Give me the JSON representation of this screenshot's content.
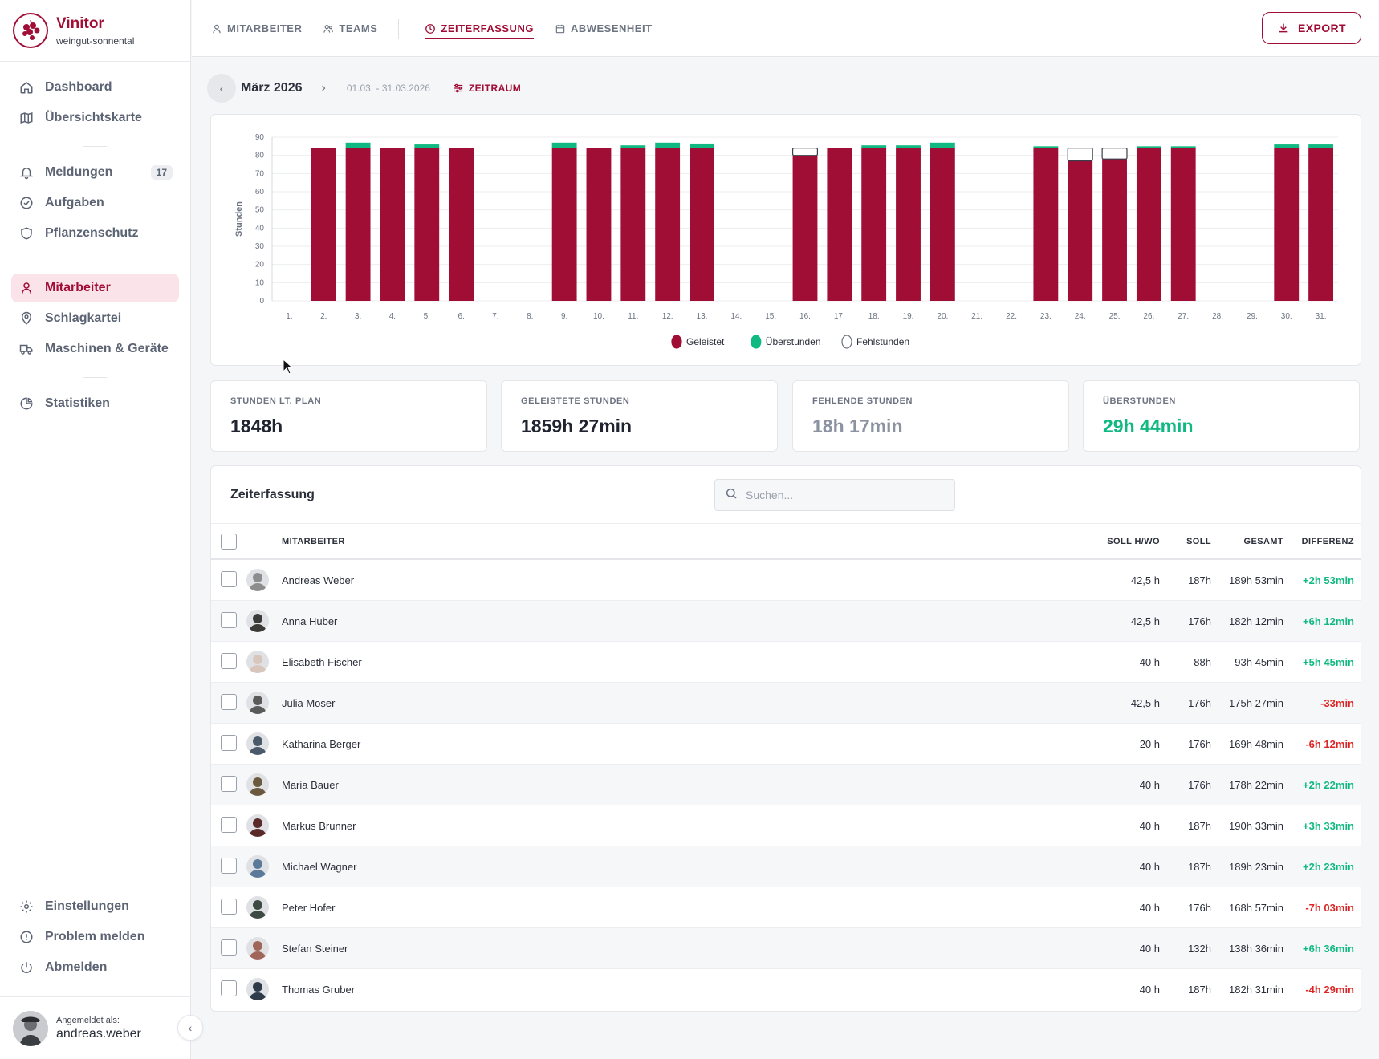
{
  "brand": {
    "name": "Vinitor",
    "subtitle": "weingut-sonnental"
  },
  "nav": {
    "group1": [
      {
        "id": "dashboard",
        "label": "Dashboard",
        "icon": "home-icon"
      },
      {
        "id": "uebersichtskarte",
        "label": "Übersichtskarte",
        "icon": "map-icon"
      }
    ],
    "group2": [
      {
        "id": "meldungen",
        "label": "Meldungen",
        "icon": "bell-icon",
        "badge": "17"
      },
      {
        "id": "aufgaben",
        "label": "Aufgaben",
        "icon": "check-circle-icon"
      },
      {
        "id": "pflanzenschutz",
        "label": "Pflanzenschutz",
        "icon": "shield-icon"
      }
    ],
    "group3": [
      {
        "id": "mitarbeiter",
        "label": "Mitarbeiter",
        "icon": "user-icon",
        "active": true
      },
      {
        "id": "schlagkartei",
        "label": "Schlagkartei",
        "icon": "map-pin-icon"
      },
      {
        "id": "maschinen",
        "label": "Maschinen & Geräte",
        "icon": "truck-icon"
      }
    ],
    "group4": [
      {
        "id": "statistiken",
        "label": "Statistiken",
        "icon": "pie-chart-icon"
      }
    ],
    "bottom": [
      {
        "id": "einstellungen",
        "label": "Einstellungen",
        "icon": "gear-icon"
      },
      {
        "id": "problem",
        "label": "Problem melden",
        "icon": "alert-circle-icon"
      },
      {
        "id": "abmelden",
        "label": "Abmelden",
        "icon": "power-icon"
      }
    ]
  },
  "user": {
    "caption": "Angemeldet als:",
    "name": "andreas.weber"
  },
  "tabs": [
    {
      "id": "mitarbeiter",
      "label": "MITARBEITER",
      "icon": "user-icon"
    },
    {
      "id": "teams",
      "label": "TEAMS",
      "icon": "users-icon"
    },
    {
      "id": "zeiterfassung",
      "label": "ZEITERFASSUNG",
      "icon": "clock-icon",
      "active": true
    },
    {
      "id": "abwesenheit",
      "label": "ABWESENHEIT",
      "icon": "calendar-icon"
    }
  ],
  "export_label": "EXPORT",
  "period": {
    "month": "März 2026",
    "range": "01.03. - 31.03.2026",
    "filter_label": "ZEITRAUM"
  },
  "chart_data": {
    "type": "bar",
    "stacked": true,
    "ylabel": "Stunden",
    "ylim": [
      0,
      90
    ],
    "yticks": [
      0,
      10,
      20,
      30,
      40,
      50,
      60,
      70,
      80,
      90
    ],
    "grid": true,
    "legend_position": "bottom-center",
    "categories": [
      "1.",
      "2.",
      "3.",
      "4.",
      "5.",
      "6.",
      "7.",
      "8.",
      "9.",
      "10.",
      "11.",
      "12.",
      "13.",
      "14.",
      "15.",
      "16.",
      "17.",
      "18.",
      "19.",
      "20.",
      "21.",
      "22.",
      "23.",
      "24.",
      "25.",
      "26.",
      "27.",
      "28.",
      "29.",
      "30.",
      "31."
    ],
    "series": [
      {
        "name": "Geleistet",
        "color": "#a00d35",
        "values": [
          0,
          84,
          84,
          84,
          84,
          84,
          0,
          0,
          84,
          84,
          84,
          84,
          84,
          0,
          0,
          80,
          84,
          84,
          84,
          84,
          0,
          0,
          84,
          77,
          78,
          84,
          84,
          0,
          0,
          84,
          84
        ]
      },
      {
        "name": "Überstunden",
        "color": "#10b981",
        "values": [
          0,
          0,
          3,
          0,
          2,
          0,
          0,
          0,
          3,
          0,
          1.5,
          3,
          2.5,
          0,
          0,
          0,
          0,
          1.5,
          1.5,
          3,
          0,
          0,
          1,
          0,
          0,
          1,
          1,
          0,
          0,
          2,
          2
        ]
      },
      {
        "name": "Fehlstunden",
        "color": "#ffffff",
        "values": [
          0,
          0,
          0,
          0,
          0,
          0,
          0,
          0,
          0,
          0,
          0,
          0,
          0,
          0,
          0,
          4,
          0,
          0,
          0,
          0,
          0,
          0,
          0,
          7,
          6,
          0,
          0,
          0,
          0,
          0,
          0
        ]
      }
    ]
  },
  "stats": [
    {
      "id": "plan",
      "label": "STUNDEN LT. PLAN",
      "value": "1848h",
      "color": "#1f2430"
    },
    {
      "id": "geleistet",
      "label": "GELEISTETE STUNDEN",
      "value": "1859h 27min",
      "color": "#1f2430"
    },
    {
      "id": "fehlend",
      "label": "FEHLENDE STUNDEN",
      "value": "18h 17min",
      "color": "#8b93a1"
    },
    {
      "id": "ueber",
      "label": "ÜBERSTUNDEN",
      "value": "29h 44min",
      "color": "#10b981"
    }
  ],
  "table": {
    "title": "Zeiterfassung",
    "search_placeholder": "Suchen...",
    "columns": {
      "name": "MITARBEITER",
      "soll_h": "SOLL H/WO",
      "soll": "SOLL",
      "gesamt": "GESAMT",
      "diff": "DIFFERENZ"
    },
    "rows": [
      {
        "name": "Andreas Weber",
        "soll_h": "42,5 h",
        "soll": "187h",
        "gesamt": "189h 53min",
        "diff": "+2h 53min",
        "positive": true,
        "avatar": "#8d8d8d"
      },
      {
        "name": "Anna Huber",
        "soll_h": "42,5 h",
        "soll": "176h",
        "gesamt": "182h 12min",
        "diff": "+6h 12min",
        "positive": true,
        "avatar": "#3b3a36"
      },
      {
        "name": "Elisabeth Fischer",
        "soll_h": "40 h",
        "soll": "88h",
        "gesamt": "93h 45min",
        "diff": "+5h 45min",
        "positive": true,
        "avatar": "#d8c6bd"
      },
      {
        "name": "Julia Moser",
        "soll_h": "42,5 h",
        "soll": "176h",
        "gesamt": "175h 27min",
        "diff": "-33min",
        "positive": false,
        "avatar": "#5a5a5a"
      },
      {
        "name": "Katharina Berger",
        "soll_h": "20 h",
        "soll": "176h",
        "gesamt": "169h 48min",
        "diff": "-6h 12min",
        "positive": false,
        "avatar": "#4a5a6a"
      },
      {
        "name": "Maria Bauer",
        "soll_h": "40 h",
        "soll": "176h",
        "gesamt": "178h 22min",
        "diff": "+2h 22min",
        "positive": true,
        "avatar": "#6b5a3e"
      },
      {
        "name": "Markus Brunner",
        "soll_h": "40 h",
        "soll": "187h",
        "gesamt": "190h 33min",
        "diff": "+3h 33min",
        "positive": true,
        "avatar": "#5a2a2a"
      },
      {
        "name": "Michael Wagner",
        "soll_h": "40 h",
        "soll": "187h",
        "gesamt": "189h 23min",
        "diff": "+2h 23min",
        "positive": true,
        "avatar": "#5b7a9a"
      },
      {
        "name": "Peter Hofer",
        "soll_h": "40 h",
        "soll": "176h",
        "gesamt": "168h 57min",
        "diff": "-7h 03min",
        "positive": false,
        "avatar": "#3e4a44"
      },
      {
        "name": "Stefan Steiner",
        "soll_h": "40 h",
        "soll": "132h",
        "gesamt": "138h 36min",
        "diff": "+6h 36min",
        "positive": true,
        "avatar": "#a0665a"
      },
      {
        "name": "Thomas Gruber",
        "soll_h": "40 h",
        "soll": "187h",
        "gesamt": "182h 31min",
        "diff": "-4h 29min",
        "positive": false,
        "avatar": "#2e3b4a"
      }
    ]
  }
}
